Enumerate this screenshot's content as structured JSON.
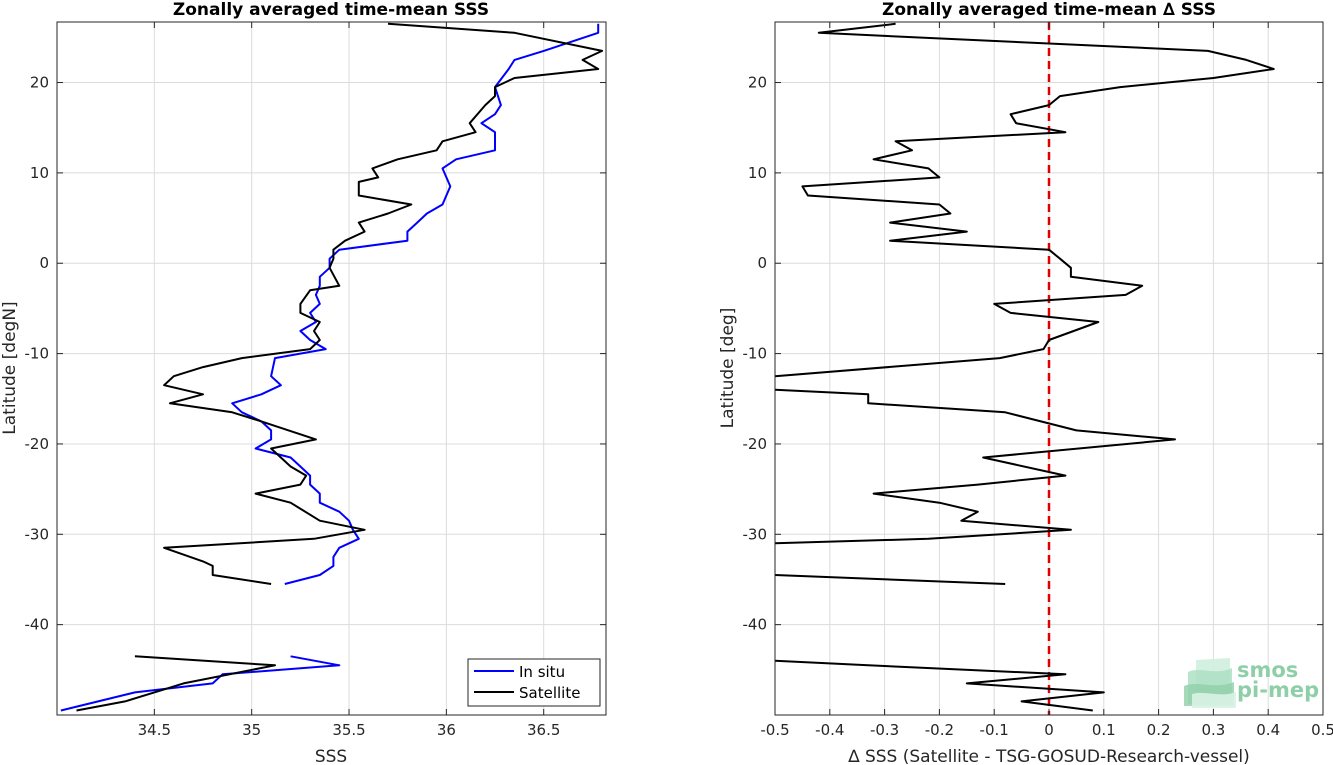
{
  "chart_data": [
    {
      "type": "line",
      "title": "Zonally averaged time-mean SSS",
      "xlabel": "SSS",
      "ylabel": "Latitude [degN]",
      "xlim": [
        34.0,
        36.82
      ],
      "ylim": [
        -50,
        26.7
      ],
      "xticks": [
        34.5,
        35,
        35.5,
        36,
        36.5
      ],
      "yticks": [
        20,
        10,
        0,
        -10,
        -20,
        -30,
        -40
      ],
      "grid": true,
      "legend_position": "bottom-right",
      "series": [
        {
          "name": "In situ",
          "color": "#0000ff",
          "segments": [
            [
              [
                36.78,
                26.5
              ],
              [
                36.78,
                25.5
              ],
              [
                36.5,
                23.5
              ],
              [
                36.35,
                22.5
              ],
              [
                36.32,
                21.5
              ],
              [
                36.25,
                19.5
              ],
              [
                36.28,
                17.5
              ],
              [
                36.25,
                16.5
              ],
              [
                36.18,
                15.5
              ],
              [
                36.25,
                14.5
              ],
              [
                36.25,
                12.5
              ],
              [
                36.05,
                11.5
              ],
              [
                35.98,
                10.5
              ],
              [
                36.02,
                8.5
              ],
              [
                35.98,
                6.5
              ],
              [
                35.9,
                5.5
              ],
              [
                35.85,
                4.5
              ],
              [
                35.8,
                3.5
              ],
              [
                35.8,
                2.5
              ],
              [
                35.45,
                1.5
              ],
              [
                35.4,
                0.5
              ],
              [
                35.4,
                -0.5
              ],
              [
                35.35,
                -1.5
              ],
              [
                35.35,
                -2.5
              ],
              [
                35.33,
                -3.5
              ],
              [
                35.35,
                -4.5
              ],
              [
                35.3,
                -5.5
              ],
              [
                35.33,
                -6.5
              ],
              [
                35.25,
                -7.5
              ],
              [
                35.3,
                -8.5
              ],
              [
                35.38,
                -9.5
              ],
              [
                35.12,
                -10.5
              ],
              [
                35.1,
                -12.5
              ],
              [
                35.15,
                -13.5
              ],
              [
                35.05,
                -14.5
              ],
              [
                34.9,
                -15.5
              ],
              [
                34.95,
                -16.5
              ],
              [
                35.05,
                -17.5
              ],
              [
                35.1,
                -18.5
              ],
              [
                35.1,
                -19.5
              ],
              [
                35.02,
                -20.5
              ],
              [
                35.2,
                -21.5
              ],
              [
                35.25,
                -22.5
              ],
              [
                35.3,
                -23.5
              ],
              [
                35.3,
                -24.5
              ],
              [
                35.35,
                -25.5
              ],
              [
                35.35,
                -26.5
              ],
              [
                35.45,
                -27.5
              ],
              [
                35.5,
                -28.5
              ],
              [
                35.52,
                -29.5
              ],
              [
                35.55,
                -30.5
              ],
              [
                35.45,
                -31.5
              ],
              [
                35.42,
                -32.5
              ],
              [
                35.42,
                -33.5
              ],
              [
                35.35,
                -34.5
              ],
              [
                35.17,
                -35.5
              ]
            ],
            [
              [
                35.2,
                -43.5
              ],
              [
                35.45,
                -44.5
              ],
              [
                34.85,
                -45.5
              ],
              [
                34.8,
                -46.5
              ],
              [
                34.4,
                -47.5
              ],
              [
                34.02,
                -49.5
              ]
            ]
          ]
        },
        {
          "name": "Satellite",
          "color": "#000000",
          "segments": [
            [
              [
                35.7,
                26.5
              ],
              [
                36.35,
                25.5
              ],
              [
                36.8,
                23.5
              ],
              [
                36.7,
                22.5
              ],
              [
                36.78,
                21.5
              ],
              [
                36.35,
                20.5
              ],
              [
                36.25,
                19.5
              ],
              [
                36.25,
                18.5
              ],
              [
                36.2,
                17.5
              ],
              [
                36.12,
                15.5
              ],
              [
                36.15,
                14.5
              ],
              [
                35.98,
                13.5
              ],
              [
                35.95,
                12.5
              ],
              [
                35.75,
                11.5
              ],
              [
                35.62,
                10.5
              ],
              [
                35.65,
                9.5
              ],
              [
                35.55,
                9
              ],
              [
                35.55,
                7.5
              ],
              [
                35.82,
                6.5
              ],
              [
                35.7,
                5.5
              ],
              [
                35.55,
                4.5
              ],
              [
                35.58,
                3.5
              ],
              [
                35.48,
                2.5
              ],
              [
                35.42,
                1.5
              ],
              [
                35.42,
                0.5
              ],
              [
                35.4,
                -0.5
              ],
              [
                35.45,
                -2.5
              ],
              [
                35.3,
                -3
              ],
              [
                35.25,
                -4.5
              ],
              [
                35.25,
                -5.5
              ],
              [
                35.35,
                -6.5
              ],
              [
                35.32,
                -7.5
              ],
              [
                35.35,
                -8.5
              ],
              [
                35.3,
                -9.5
              ],
              [
                34.95,
                -10.5
              ],
              [
                34.75,
                -11.5
              ],
              [
                34.6,
                -12.5
              ],
              [
                34.55,
                -13.5
              ],
              [
                34.75,
                -14.5
              ],
              [
                34.58,
                -15.5
              ],
              [
                34.9,
                -16.5
              ],
              [
                35.05,
                -17.5
              ],
              [
                35.33,
                -19.5
              ],
              [
                35.1,
                -20.5
              ],
              [
                35.2,
                -22.5
              ],
              [
                35.28,
                -23.5
              ],
              [
                35.25,
                -24.5
              ],
              [
                35.02,
                -25.5
              ],
              [
                35.2,
                -26.5
              ],
              [
                35.35,
                -28.5
              ],
              [
                35.58,
                -29.5
              ],
              [
                35.32,
                -30.5
              ],
              [
                34.55,
                -31.5
              ],
              [
                34.75,
                -33
              ],
              [
                34.8,
                -33.5
              ],
              [
                34.8,
                -34.5
              ],
              [
                35.1,
                -35.5
              ]
            ],
            [
              [
                34.4,
                -43.5
              ],
              [
                35.12,
                -44.5
              ],
              [
                34.65,
                -46.5
              ],
              [
                34.35,
                -48.5
              ],
              [
                34.1,
                -49.5
              ]
            ]
          ]
        }
      ]
    },
    {
      "type": "line",
      "title": "Zonally averaged time-mean ∆ SSS",
      "xlabel": "∆ SSS (Satellite - TSG-GOSUD-Research-vessel)",
      "ylabel": "Latitude [deg]",
      "xlim": [
        -0.5,
        0.5
      ],
      "ylim": [
        -50,
        26.7
      ],
      "xticks": [
        -0.5,
        -0.4,
        -0.3,
        -0.2,
        -0.1,
        0,
        0.1,
        0.2,
        0.3,
        0.4,
        0.5
      ],
      "yticks": [
        20,
        10,
        0,
        -10,
        -20,
        -30,
        -40
      ],
      "grid": true,
      "reference_line": {
        "x": 0,
        "color": "#e00000",
        "style": "dashed"
      },
      "series": [
        {
          "color": "#000000",
          "segments": [
            [
              [
                -0.28,
                26.5
              ],
              [
                -0.42,
                25.5
              ],
              [
                0.29,
                23.5
              ],
              [
                0.36,
                22.5
              ],
              [
                0.41,
                21.5
              ],
              [
                0.3,
                20.5
              ],
              [
                0.13,
                19.5
              ],
              [
                0.02,
                18.5
              ],
              [
                0.0,
                17.5
              ],
              [
                -0.07,
                16.5
              ],
              [
                -0.06,
                15.5
              ],
              [
                0.03,
                14.5
              ],
              [
                -0.28,
                13.5
              ],
              [
                -0.25,
                12.5
              ],
              [
                -0.32,
                11.5
              ],
              [
                -0.22,
                10.5
              ],
              [
                -0.2,
                9.5
              ],
              [
                -0.45,
                8.5
              ],
              [
                -0.44,
                7.5
              ],
              [
                -0.2,
                6.5
              ],
              [
                -0.18,
                5.5
              ],
              [
                -0.29,
                4.5
              ],
              [
                -0.15,
                3.5
              ],
              [
                -0.29,
                2.5
              ],
              [
                0.0,
                1.5
              ],
              [
                0.02,
                0.5
              ],
              [
                0.04,
                -0.5
              ],
              [
                0.04,
                -1.5
              ],
              [
                0.17,
                -2.5
              ],
              [
                0.14,
                -3.5
              ],
              [
                -0.1,
                -4.5
              ],
              [
                -0.07,
                -5.5
              ],
              [
                0.09,
                -6.5
              ],
              [
                0.0,
                -8.5
              ],
              [
                -0.01,
                -9.5
              ],
              [
                -0.09,
                -10.5
              ],
              [
                -0.5,
                -12.5
              ]
            ],
            [
              [
                -0.5,
                -14
              ],
              [
                -0.33,
                -14.5
              ],
              [
                -0.33,
                -15.5
              ],
              [
                -0.08,
                -16.5
              ],
              [
                0.05,
                -18.5
              ],
              [
                0.23,
                -19.5
              ],
              [
                -0.12,
                -21.5
              ],
              [
                0.03,
                -23.5
              ],
              [
                -0.13,
                -24.5
              ],
              [
                -0.32,
                -25.5
              ],
              [
                -0.2,
                -26.5
              ],
              [
                -0.13,
                -27.5
              ],
              [
                -0.16,
                -28.5
              ],
              [
                0.04,
                -29.5
              ],
              [
                -0.22,
                -30.5
              ],
              [
                -0.5,
                -31
              ]
            ],
            [
              [
                -0.5,
                -34.5
              ],
              [
                -0.08,
                -35.5
              ]
            ],
            [
              [
                -0.5,
                -44
              ],
              [
                -0.33,
                -44.5
              ],
              [
                0.03,
                -45.5
              ],
              [
                -0.15,
                -46.5
              ],
              [
                0.1,
                -47.5
              ],
              [
                -0.05,
                -48.5
              ],
              [
                0.08,
                -49.5
              ]
            ]
          ]
        }
      ]
    }
  ],
  "legend": {
    "entries": [
      "In situ",
      "Satellite"
    ]
  },
  "logo": {
    "line1": "smos",
    "line2": "pi-mep"
  }
}
